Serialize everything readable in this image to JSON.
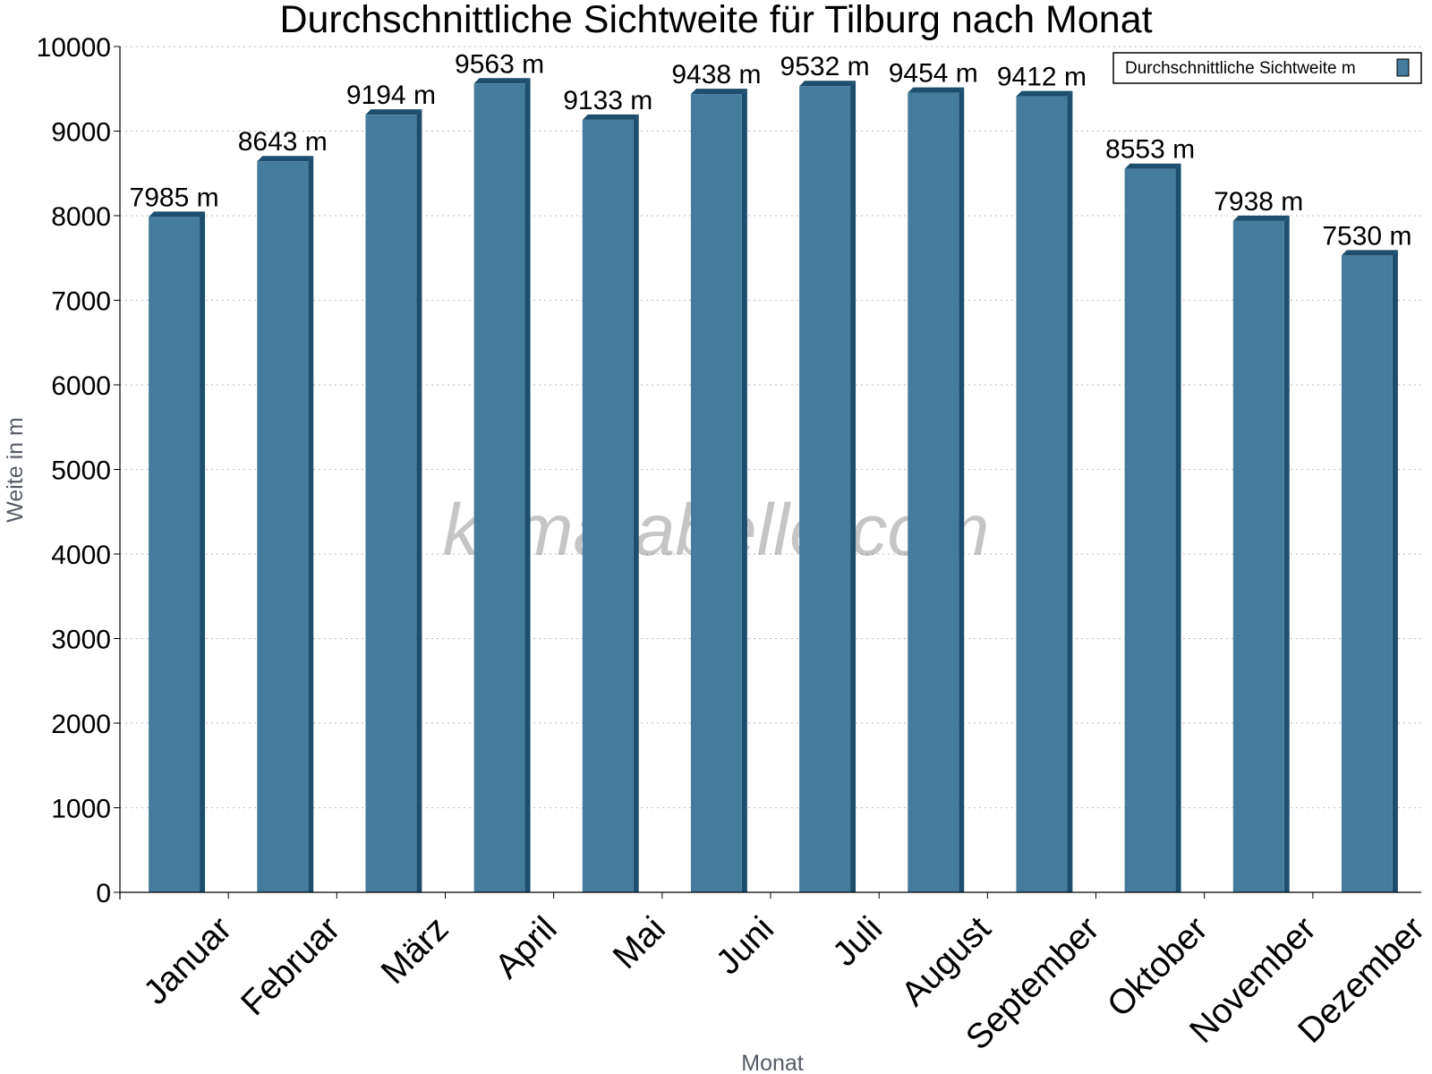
{
  "chart_data": {
    "type": "bar",
    "title": "Durchschnittliche Sichtweite für Tilburg nach Monat",
    "xlabel": "Monat",
    "ylabel": "Weite in m",
    "ylim": [
      0,
      10000
    ],
    "yticks": [
      0,
      1000,
      2000,
      3000,
      4000,
      5000,
      6000,
      7000,
      8000,
      9000,
      10000
    ],
    "grid": true,
    "legend_position": "top-right",
    "categories": [
      "Januar",
      "Februar",
      "März",
      "April",
      "Mai",
      "Juni",
      "Juli",
      "August",
      "September",
      "Oktober",
      "November",
      "Dezember"
    ],
    "series": [
      {
        "name": "Durchschnittliche Sichtweite m",
        "values": [
          7985,
          8643,
          9194,
          9563,
          9133,
          9438,
          9532,
          9454,
          9412,
          8553,
          7938,
          7530
        ],
        "labels": [
          "7985 m",
          "8643 m",
          "9194 m",
          "9563 m",
          "9133 m",
          "9438 m",
          "9532 m",
          "9454 m",
          "9412 m",
          "8553 m",
          "7938 m",
          "7530 m"
        ],
        "color": "#457b9d",
        "shade_color": "#1d4e6e"
      }
    ],
    "watermark": "klimatabelle.com"
  }
}
